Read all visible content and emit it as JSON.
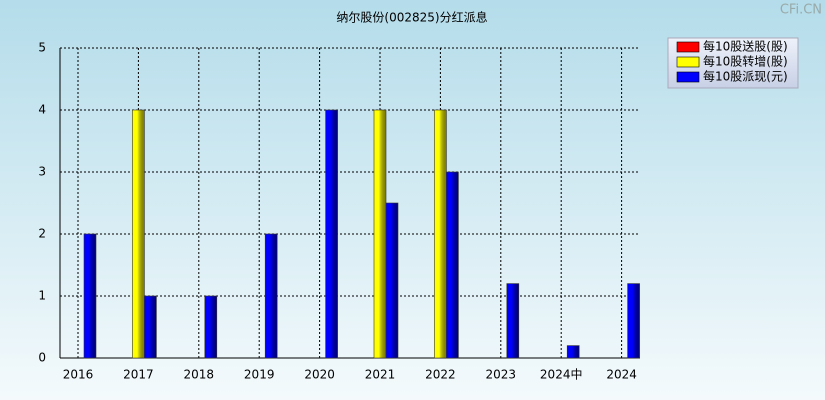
{
  "chart_data": {
    "type": "bar",
    "title": "纳尔股份(002825)分红派息",
    "watermark": "CFi.CN",
    "categories": [
      "2016",
      "2017",
      "2018",
      "2019",
      "2020",
      "2021",
      "2022",
      "2023",
      "2024中",
      "2024"
    ],
    "series": [
      {
        "name": "每10股送股(股)",
        "color": "#ff0000",
        "values": [
          null,
          null,
          null,
          null,
          null,
          null,
          null,
          null,
          null,
          null
        ]
      },
      {
        "name": "每10股转增(股)",
        "color": "#ffff00",
        "values": [
          null,
          4,
          null,
          null,
          null,
          4,
          4,
          null,
          null,
          null
        ]
      },
      {
        "name": "每10股派现(元)",
        "color": "#0000ff",
        "values": [
          2,
          1,
          1,
          2,
          4,
          2.5,
          3,
          1.2,
          0.2,
          1.2
        ]
      }
    ],
    "ylim": [
      0,
      5
    ],
    "yticks": [
      0,
      1,
      2,
      3,
      4,
      5
    ],
    "grid": true,
    "legend": "top-right"
  }
}
